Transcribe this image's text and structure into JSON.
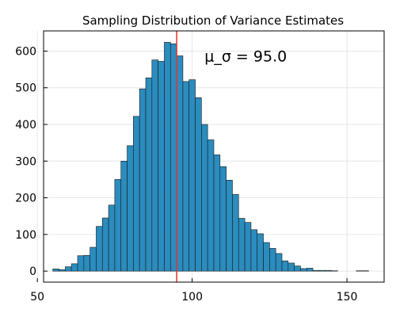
{
  "chart_data": {
    "type": "histogram",
    "title": "Sampling Distribution of Variance Estimates",
    "xlabel": "",
    "ylabel": "",
    "xlim": [
      52,
      162
    ],
    "ylim": [
      -30,
      655
    ],
    "grid": true,
    "x_ticks": [
      50,
      100,
      150
    ],
    "x_tick_labels": [
      "50",
      "100",
      "150"
    ],
    "y_ticks": [
      0,
      100,
      200,
      300,
      400,
      500,
      600
    ],
    "y_tick_labels": [
      "0",
      "100",
      "200",
      "300",
      "400",
      "500",
      "600"
    ],
    "bar_color": "#2b8cbe",
    "bar_edge_color": "#1a1a1a",
    "bins": {
      "edges": [
        55,
        57,
        59,
        61,
        63,
        65,
        67,
        69,
        71,
        73,
        75,
        77,
        79,
        81,
        83,
        85,
        87,
        89,
        91,
        93,
        95,
        97,
        99,
        101,
        103,
        105,
        107,
        109,
        111,
        113,
        115,
        117,
        119,
        121,
        123,
        125,
        127,
        129,
        131,
        133,
        135,
        137,
        139,
        141,
        143,
        145,
        147,
        149,
        151,
        153,
        155,
        157
      ],
      "counts": [
        6,
        4,
        12,
        20,
        42,
        43,
        65,
        122,
        145,
        180,
        250,
        300,
        342,
        422,
        497,
        527,
        576,
        572,
        624,
        620,
        587,
        517,
        522,
        473,
        400,
        358,
        317,
        285,
        248,
        209,
        144,
        133,
        113,
        102,
        78,
        62,
        48,
        28,
        22,
        14,
        7,
        8,
        2,
        2,
        2,
        1,
        0,
        0,
        0,
        1,
        1
      ]
    },
    "reference_line": {
      "x": 95.0,
      "color": "#e8312a"
    },
    "annotation": {
      "text": "μ_σ = 95.0",
      "x": 104,
      "y": 585
    }
  }
}
